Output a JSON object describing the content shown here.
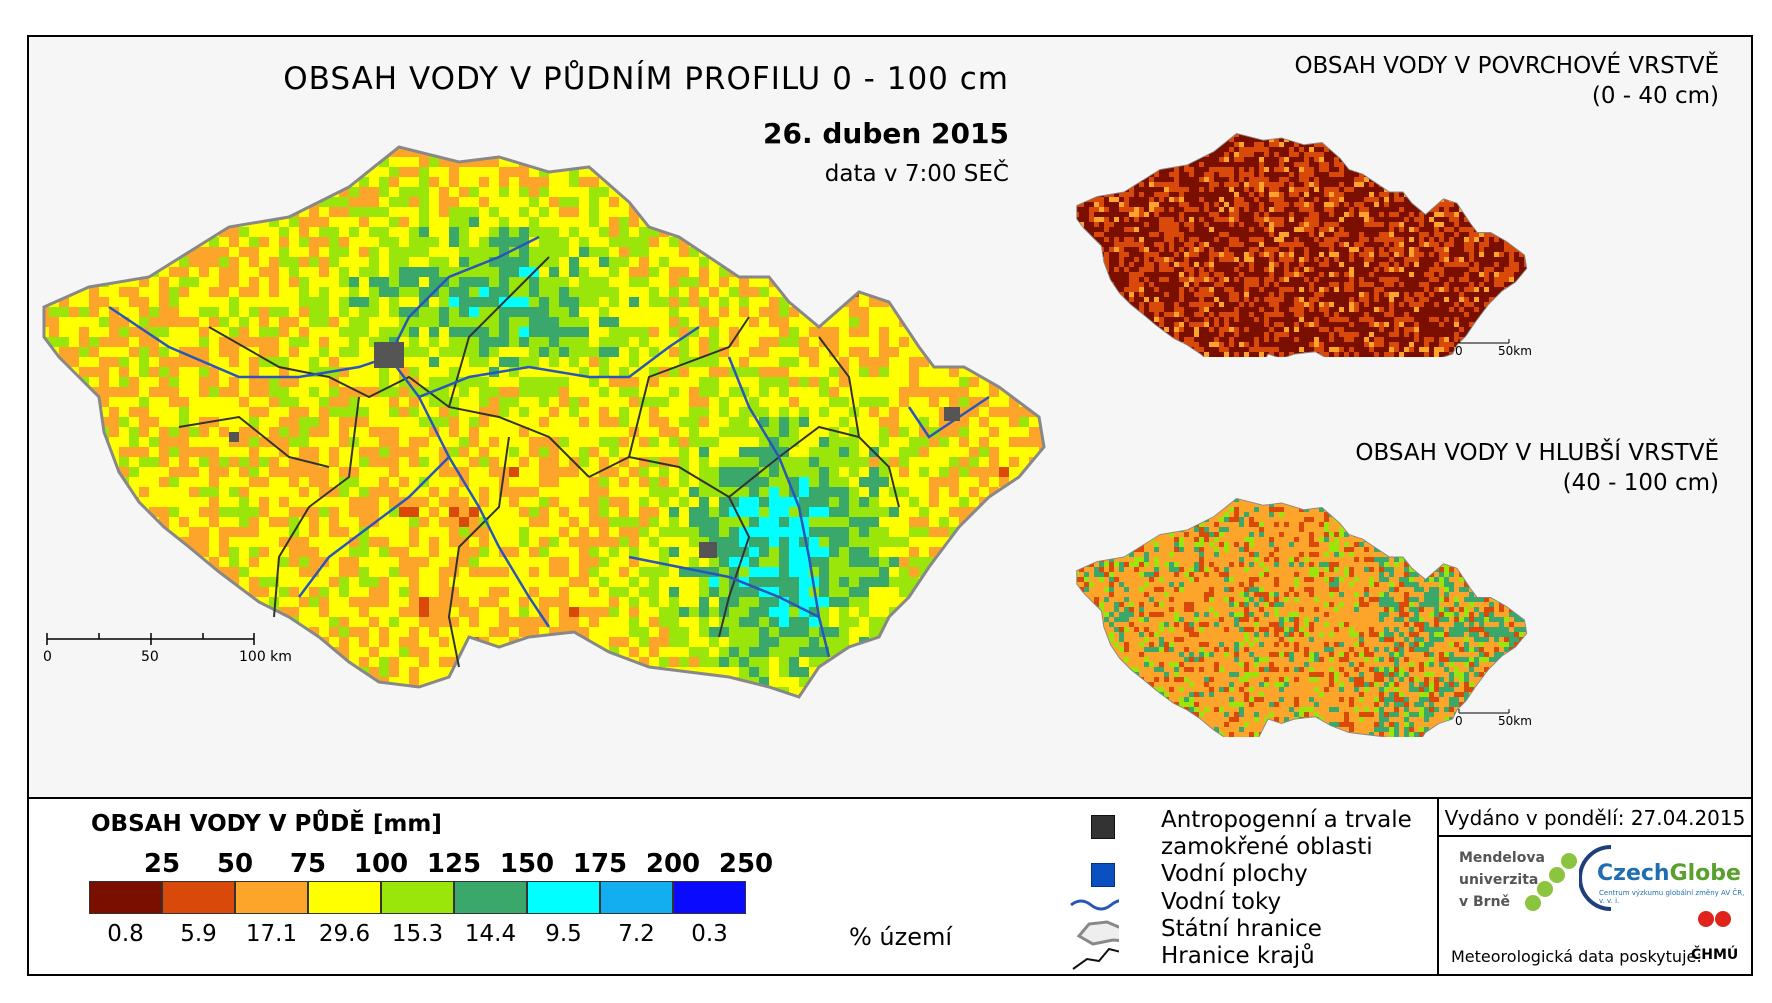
{
  "main_map": {
    "title": "OBSAH VODY V PŮDNÍM PROFILU 0 - 100 cm",
    "date": "26. duben 2015",
    "time_note": "data v 7:00 SEČ",
    "scale": {
      "ticks": [
        "0",
        "50",
        "100 km"
      ]
    }
  },
  "inset_surface": {
    "title": "OBSAH VODY V POVRCHOVÉ VRSTVĚ",
    "range": "(0 - 40 cm)",
    "scale": {
      "ticks": [
        "0",
        "50km"
      ]
    }
  },
  "inset_deep": {
    "title": "OBSAH VODY V HLUBŠÍ VRSTVĚ",
    "range": "(40 - 100 cm)",
    "scale": {
      "ticks": [
        "0",
        "50km"
      ]
    }
  },
  "legend": {
    "title": "OBSAH VODY V PŮDĚ [mm]",
    "breaks": [
      "25",
      "50",
      "75",
      "100",
      "125",
      "150",
      "175",
      "200",
      "250"
    ],
    "classes": [
      {
        "color": "#7a0f00",
        "pct": "0.8"
      },
      {
        "color": "#d94a0a",
        "pct": "5.9"
      },
      {
        "color": "#fca52a",
        "pct": "17.1"
      },
      {
        "color": "#ffff00",
        "pct": "29.6"
      },
      {
        "color": "#9ae60a",
        "pct": "15.3"
      },
      {
        "color": "#3aa86a",
        "pct": "14.4"
      },
      {
        "color": "#00ffff",
        "pct": "9.5"
      },
      {
        "color": "#13aeef",
        "pct": "7.2"
      },
      {
        "color": "#0a0aff",
        "pct": "0.3"
      }
    ],
    "pct_unit": "% území"
  },
  "symbols": {
    "anthropogenic": "Antropogenní a trvale",
    "anthropogenic_2": "zamokřené oblasti",
    "water_bodies": "Vodní plochy",
    "rivers": "Vodní toky",
    "state_border": "Státní hranice",
    "region_border": "Hranice krajů"
  },
  "footer": {
    "issued": "Vydáno v pondělí: 27.04.2015",
    "mendel_1": "Mendelova",
    "mendel_2": "univerzita",
    "mendel_3": "v Brně",
    "czechglobe": "CzechGlobe",
    "czechglobe_sub": "Centrum výzkumu globální změny AV ČR, v. v. i.",
    "provider": "Meteorologická data poskytuje:",
    "chmu": "ČHMÚ"
  }
}
